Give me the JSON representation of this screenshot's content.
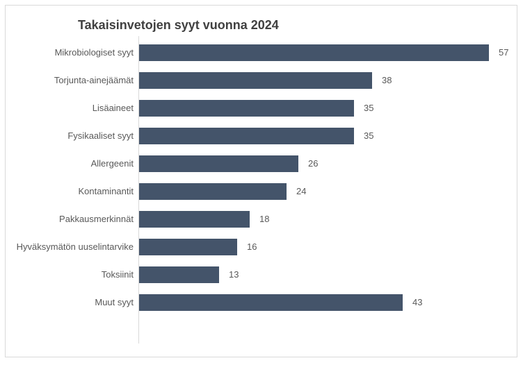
{
  "chart_data": {
    "type": "bar",
    "orientation": "horizontal",
    "title": "Takaisinvetojen syyt vuonna 2024",
    "categories": [
      "Mikrobiologiset syyt",
      "Torjunta-ainejäämät",
      "Lisäaineet",
      "Fysikaaliset syyt",
      "Allergeenit",
      "Kontaminantit",
      "Pakkausmerkinnät",
      "Hyväksymätön uuselintarvike",
      "Toksiinit",
      "Muut syyt"
    ],
    "values": [
      57,
      38,
      35,
      35,
      26,
      24,
      18,
      16,
      13,
      43
    ],
    "data_labels_shown": true,
    "xlabel": "",
    "ylabel": "",
    "legend": "none",
    "grid": false,
    "colors": {
      "bar_fill": "#44546a",
      "title_text": "#404040",
      "label_text": "#595959",
      "axis_line": "#d9d9d9",
      "chart_border": "#d9d9d9",
      "background": "#ffffff"
    }
  }
}
